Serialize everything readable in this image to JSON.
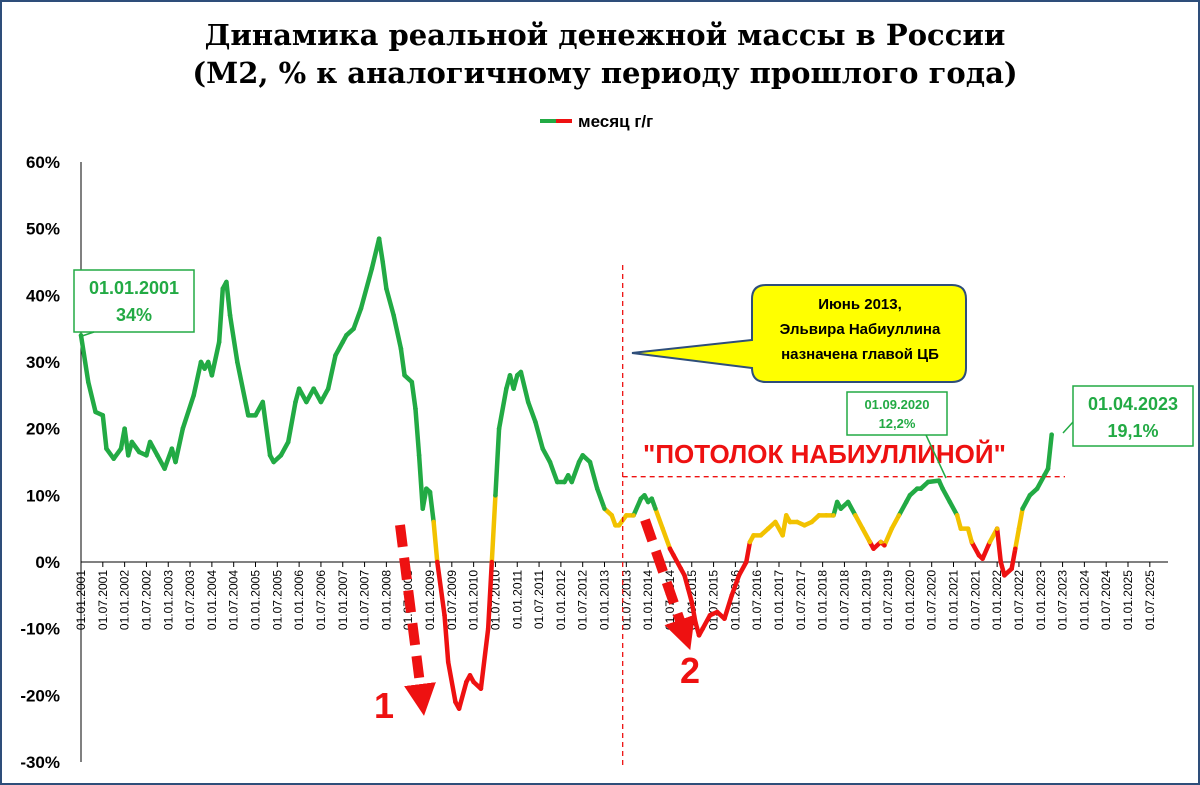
{
  "colors": {
    "line_high": "#22aa44",
    "line_mid": "#f2c200",
    "line_low": "#ee1111",
    "callout_fill": "#ffff00",
    "callout_border": "#2e4e7a",
    "frame": "#2e4e7a",
    "annotation_green": "#22aa44",
    "guide_red": "#ee1111"
  },
  "chart_data": {
    "type": "line",
    "title": "Динамика реальной денежной массы в России",
    "subtitle": "(М2, % к аналогичному периоду прошлого года)",
    "legend": {
      "label": "месяц г/г",
      "placement": "top-center"
    },
    "y_axis": {
      "min": -30,
      "max": 60,
      "step": 10,
      "tick_labels": [
        "60%",
        "50%",
        "40%",
        "30%",
        "20%",
        "10%",
        "0%",
        "-10%",
        "-20%",
        "-30%"
      ]
    },
    "x_axis": {
      "range": [
        "2001-01-01",
        "2025-12-01"
      ],
      "tick_labels": [
        "01.01.2001",
        "01.07.2001",
        "01.01.2002",
        "01.07.2002",
        "01.01.2003",
        "01.07.2003",
        "01.01.2004",
        "01.07.2004",
        "01.01.2005",
        "01.07.2005",
        "01.01.2006",
        "01.07.2006",
        "01.01.2007",
        "01.07.2007",
        "01.01.2008",
        "01.07.2008",
        "01.01.2009",
        "01.07.2009",
        "01.01.2010",
        "01.07.2010",
        "01.01.2011",
        "01.07.2011",
        "01.01.2012",
        "01.07.2012",
        "01.01.2013",
        "01.07.2013",
        "01.01.2014",
        "01.07.2014",
        "01.01.2015",
        "01.07.2015",
        "01.01.2016",
        "01.07.2016",
        "01.01.2017",
        "01.07.2017",
        "01.01.2018",
        "01.07.2018",
        "01.01.2019",
        "01.07.2019",
        "01.01.2020",
        "01.07.2020",
        "01.01.2021",
        "01.07.2021",
        "01.01.2022",
        "01.07.2022",
        "01.01.2023",
        "01.07.2023",
        "01.01.2024",
        "01.07.2024",
        "01.01.2025",
        "01.07.2025"
      ]
    },
    "grid": false,
    "series": [
      {
        "name": "месяц г/г",
        "points": [
          [
            "2001-01",
            34
          ],
          [
            "2001-03",
            27
          ],
          [
            "2001-05",
            22.5
          ],
          [
            "2001-07",
            22
          ],
          [
            "2001-08",
            17
          ],
          [
            "2001-10",
            15.5
          ],
          [
            "2001-12",
            17
          ],
          [
            "2002-01",
            20
          ],
          [
            "2002-02",
            16
          ],
          [
            "2002-03",
            18
          ],
          [
            "2002-05",
            16.5
          ],
          [
            "2002-07",
            16
          ],
          [
            "2002-08",
            18
          ],
          [
            "2002-10",
            16
          ],
          [
            "2002-12",
            14
          ],
          [
            "2003-02",
            17
          ],
          [
            "2003-03",
            15
          ],
          [
            "2003-05",
            20
          ],
          [
            "2003-08",
            25
          ],
          [
            "2003-10",
            30
          ],
          [
            "2003-11",
            29
          ],
          [
            "2003-12",
            30
          ],
          [
            "2004-01",
            28
          ],
          [
            "2004-03",
            33
          ],
          [
            "2004-04",
            41
          ],
          [
            "2004-05",
            42
          ],
          [
            "2004-06",
            37
          ],
          [
            "2004-08",
            30
          ],
          [
            "2004-11",
            22
          ],
          [
            "2005-01",
            22
          ],
          [
            "2005-03",
            24
          ],
          [
            "2005-05",
            16
          ],
          [
            "2005-06",
            15
          ],
          [
            "2005-08",
            16
          ],
          [
            "2005-10",
            18
          ],
          [
            "2005-12",
            24
          ],
          [
            "2006-01",
            26
          ],
          [
            "2006-03",
            24
          ],
          [
            "2006-05",
            26
          ],
          [
            "2006-07",
            24
          ],
          [
            "2006-09",
            26
          ],
          [
            "2006-11",
            31
          ],
          [
            "2007-01",
            33
          ],
          [
            "2007-02",
            34
          ],
          [
            "2007-04",
            35
          ],
          [
            "2007-06",
            38
          ],
          [
            "2007-09",
            44
          ],
          [
            "2007-11",
            48.5
          ],
          [
            "2007-12",
            45
          ],
          [
            "2008-01",
            41
          ],
          [
            "2008-03",
            37
          ],
          [
            "2008-05",
            32
          ],
          [
            "2008-06",
            28
          ],
          [
            "2008-08",
            27
          ],
          [
            "2008-09",
            23
          ],
          [
            "2008-10",
            16
          ],
          [
            "2008-11",
            8
          ],
          [
            "2008-12",
            11
          ],
          [
            "2009-01",
            10.5
          ],
          [
            "2009-02",
            6
          ],
          [
            "2009-03",
            0
          ],
          [
            "2009-05",
            -8
          ],
          [
            "2009-06",
            -15
          ],
          [
            "2009-08",
            -21
          ],
          [
            "2009-09",
            -22
          ],
          [
            "2009-11",
            -18
          ],
          [
            "2009-12",
            -17
          ],
          [
            "2010-01",
            -18
          ],
          [
            "2010-03",
            -19
          ],
          [
            "2010-05",
            -10
          ],
          [
            "2010-06",
            0
          ],
          [
            "2010-07",
            10
          ],
          [
            "2010-08",
            20
          ],
          [
            "2010-10",
            26
          ],
          [
            "2010-11",
            28
          ],
          [
            "2010-12",
            26
          ],
          [
            "2011-01",
            28
          ],
          [
            "2011-02",
            28.5
          ],
          [
            "2011-04",
            24
          ],
          [
            "2011-06",
            21
          ],
          [
            "2011-08",
            17
          ],
          [
            "2011-10",
            15
          ],
          [
            "2011-12",
            12
          ],
          [
            "2012-02",
            12
          ],
          [
            "2012-03",
            13
          ],
          [
            "2012-04",
            12
          ],
          [
            "2012-06",
            15
          ],
          [
            "2012-07",
            16
          ],
          [
            "2012-09",
            15
          ],
          [
            "2012-11",
            11
          ],
          [
            "2013-01",
            8
          ],
          [
            "2013-03",
            7
          ],
          [
            "2013-04",
            5.5
          ],
          [
            "2013-05",
            5.5
          ],
          [
            "2013-07",
            7
          ],
          [
            "2013-09",
            7
          ],
          [
            "2013-11",
            9.5
          ],
          [
            "2013-12",
            10
          ],
          [
            "2014-01",
            9
          ],
          [
            "2014-02",
            9.5
          ],
          [
            "2014-03",
            8
          ],
          [
            "2014-05",
            5
          ],
          [
            "2014-07",
            2
          ],
          [
            "2014-08",
            1
          ],
          [
            "2014-10",
            -1
          ],
          [
            "2014-11",
            -2
          ],
          [
            "2014-12",
            -4
          ],
          [
            "2015-01",
            -6
          ],
          [
            "2015-02",
            -9
          ],
          [
            "2015-03",
            -11
          ],
          [
            "2015-04",
            -10
          ],
          [
            "2015-06",
            -8
          ],
          [
            "2015-08",
            -7.5
          ],
          [
            "2015-10",
            -8.5
          ],
          [
            "2015-12",
            -5
          ],
          [
            "2016-02",
            -2
          ],
          [
            "2016-04",
            0
          ],
          [
            "2016-05",
            3
          ],
          [
            "2016-06",
            4
          ],
          [
            "2016-08",
            4
          ],
          [
            "2016-10",
            5
          ],
          [
            "2016-12",
            6
          ],
          [
            "2017-02",
            4
          ],
          [
            "2017-03",
            7
          ],
          [
            "2017-04",
            6
          ],
          [
            "2017-06",
            6
          ],
          [
            "2017-08",
            5.5
          ],
          [
            "2017-10",
            6
          ],
          [
            "2017-12",
            7
          ],
          [
            "2018-02",
            7
          ],
          [
            "2018-04",
            7
          ],
          [
            "2018-05",
            9
          ],
          [
            "2018-06",
            8
          ],
          [
            "2018-08",
            9
          ],
          [
            "2018-10",
            7
          ],
          [
            "2018-12",
            5
          ],
          [
            "2019-02",
            3
          ],
          [
            "2019-03",
            2
          ],
          [
            "2019-05",
            3
          ],
          [
            "2019-06",
            2.5
          ],
          [
            "2019-08",
            5
          ],
          [
            "2019-10",
            7
          ],
          [
            "2019-12",
            9
          ],
          [
            "2020-01",
            10
          ],
          [
            "2020-03",
            11
          ],
          [
            "2020-04",
            11
          ],
          [
            "2020-06",
            12
          ],
          [
            "2020-09",
            12.2
          ],
          [
            "2020-10",
            11
          ],
          [
            "2020-12",
            9
          ],
          [
            "2021-02",
            7
          ],
          [
            "2021-03",
            5
          ],
          [
            "2021-05",
            5
          ],
          [
            "2021-06",
            3
          ],
          [
            "2021-08",
            1
          ],
          [
            "2021-09",
            0.5
          ],
          [
            "2021-11",
            3
          ],
          [
            "2022-01",
            5
          ],
          [
            "2022-02",
            0
          ],
          [
            "2022-03",
            -2
          ],
          [
            "2022-05",
            -1
          ],
          [
            "2022-06",
            2
          ],
          [
            "2022-07",
            5
          ],
          [
            "2022-08",
            8
          ],
          [
            "2022-10",
            10
          ],
          [
            "2022-12",
            11
          ],
          [
            "2023-02",
            13
          ],
          [
            "2023-03",
            14
          ],
          [
            "2023-04",
            19.1
          ]
        ]
      }
    ]
  },
  "annotations": {
    "start": {
      "date": "01.01.2001",
      "value": "34%"
    },
    "peak_2020": {
      "date": "01.09.2020",
      "value": "12,2%"
    },
    "last": {
      "date": "01.04.2023",
      "value": "19,1%"
    },
    "callout": {
      "lines": [
        "Июнь 2013,",
        "Эльвира  Набиуллина",
        "назначена главой ЦБ"
      ]
    },
    "ceiling": {
      "label": "\"ПОТОЛОК НАБИУЛЛИНОЙ\"",
      "value": 12.5
    },
    "event_line_date": "2013-06",
    "marker_1": "1",
    "marker_2": "2"
  }
}
